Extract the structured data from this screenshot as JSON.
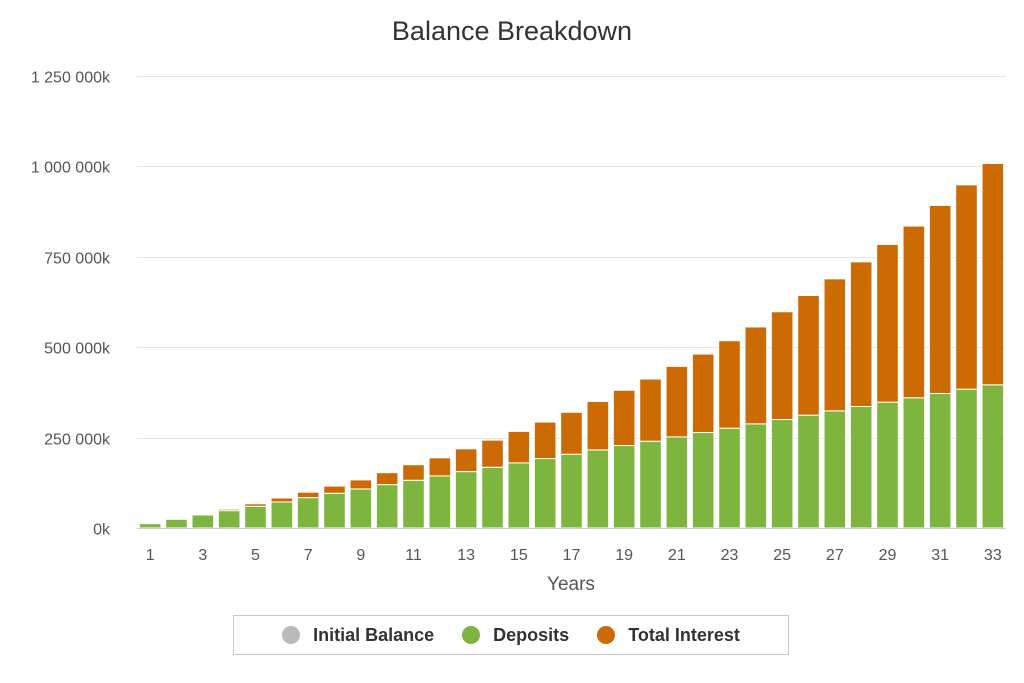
{
  "chart_data": {
    "type": "bar",
    "stacked": true,
    "title": "Balance Breakdown",
    "xlabel": "Years",
    "ylabel": "",
    "ylim": [
      0,
      1250000
    ],
    "y_ticks": [
      0,
      250000,
      500000,
      750000,
      1000000,
      1250000
    ],
    "y_tick_labels": [
      "0k",
      "250 000k",
      "500 000k",
      "750 000k",
      "1 000 000k",
      "1 250 000k"
    ],
    "x_tick_labels": [
      "1",
      "3",
      "5",
      "7",
      "9",
      "11",
      "13",
      "15",
      "17",
      "19",
      "21",
      "23",
      "25",
      "27",
      "29",
      "31",
      "33"
    ],
    "grid": true,
    "legend_position": "bottom-center",
    "categories": [
      "1",
      "2",
      "3",
      "4",
      "5",
      "6",
      "7",
      "8",
      "9",
      "10",
      "11",
      "12",
      "13",
      "14",
      "15",
      "16",
      "17",
      "18",
      "19",
      "20",
      "21",
      "22",
      "23",
      "24",
      "25",
      "26",
      "27",
      "28",
      "29",
      "30",
      "31",
      "32",
      "33"
    ],
    "series": [
      {
        "name": "Initial Balance",
        "color": "#bbbbbb",
        "values": [
          0,
          0,
          0,
          0,
          0,
          0,
          0,
          0,
          0,
          0,
          0,
          0,
          0,
          0,
          0,
          0,
          0,
          0,
          0,
          0,
          0,
          0,
          0,
          0,
          0,
          0,
          0,
          0,
          0,
          0,
          0,
          0,
          0
        ]
      },
      {
        "name": "Deposits",
        "color": "#7db53e",
        "values": [
          12000,
          24000,
          36000,
          48000,
          60000,
          72000,
          84000,
          96000,
          108000,
          120000,
          132000,
          144000,
          156000,
          168000,
          180000,
          192000,
          204000,
          216000,
          228000,
          240000,
          252000,
          264000,
          276000,
          288000,
          300000,
          312000,
          324000,
          336000,
          348000,
          360000,
          372000,
          384000,
          396000
        ]
      },
      {
        "name": "Total Interest",
        "color": "#cc6a04",
        "values": [
          0,
          0,
          0,
          4000,
          7000,
          11000,
          15000,
          20000,
          25000,
          33000,
          43000,
          50000,
          63000,
          75000,
          87000,
          101000,
          116000,
          134000,
          153000,
          172000,
          195000,
          217000,
          242000,
          268000,
          298000,
          331000,
          365000,
          400000,
          436000,
          475000,
          520000,
          565000,
          612000
        ]
      }
    ]
  }
}
